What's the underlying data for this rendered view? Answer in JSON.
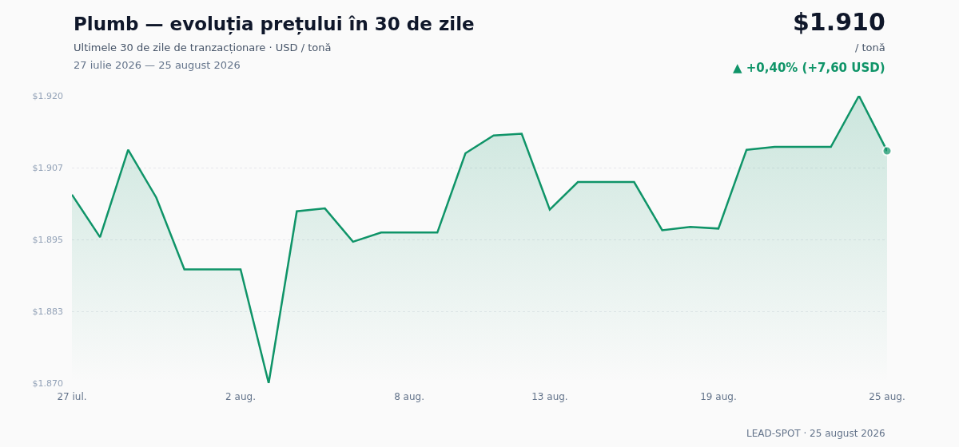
{
  "chart_data": {
    "type": "area",
    "title": "Plumb — evoluția prețului în 30 de zile",
    "subtitle": "Ultimele 30 de zile de tranzacționare · USD / tonă",
    "annotations": [
      "27 iulie 2026 — 25 august 2026",
      "$1.910",
      "/ tonă",
      "▲ +0,40% (+7,60 USD)",
      "LEAD-SPOT · 25 august 2026"
    ],
    "x": [
      "2026-07-27",
      "2026-07-28",
      "2026-07-29",
      "2026-07-30",
      "2026-07-31",
      "2026-08-01",
      "2026-08-02",
      "2026-08-03",
      "2026-08-04",
      "2026-08-05",
      "2026-08-06",
      "2026-08-07",
      "2026-08-08",
      "2026-08-09",
      "2026-08-10",
      "2026-08-11",
      "2026-08-12",
      "2026-08-13",
      "2026-08-14",
      "2026-08-15",
      "2026-08-16",
      "2026-08-17",
      "2026-08-18",
      "2026-08-19",
      "2026-08-20",
      "2026-08-21",
      "2026-08-22",
      "2026-08-23",
      "2026-08-24",
      "2026-08-25"
    ],
    "series": [
      {
        "color": "#0f9468",
        "values": [
          1902.8,
          1895.4,
          1910.6,
          1902.3,
          1889.8,
          1889.8,
          1889.8,
          1870.0,
          1899.9,
          1900.4,
          1894.6,
          1896.2,
          1896.2,
          1896.2,
          1910.0,
          1913.1,
          1913.4,
          1900.2,
          1905.0,
          1905.0,
          1905.0,
          1896.6,
          1897.2,
          1896.9,
          1910.6,
          1911.1,
          1911.1,
          1911.1,
          1920.0,
          1910.4
        ]
      }
    ],
    "xlim": [
      "2026-07-27",
      "2026-08-25"
    ],
    "xticks": [
      {
        "value": "2026-07-27",
        "label": "27 iul."
      },
      {
        "value": "2026-08-02",
        "label": "2 aug."
      },
      {
        "value": "2026-08-08",
        "label": "8 aug."
      },
      {
        "value": "2026-08-13",
        "label": "13 aug."
      },
      {
        "value": "2026-08-19",
        "label": "19 aug."
      },
      {
        "value": "2026-08-25",
        "label": "25 aug."
      }
    ],
    "ylim": [
      1870,
      1920
    ],
    "yticks": [
      {
        "value": 1870,
        "label": "$1.870"
      },
      {
        "value": 1882.5,
        "label": "$1.883"
      },
      {
        "value": 1895,
        "label": "$1.895"
      },
      {
        "value": 1907.5,
        "label": "$1.907"
      },
      {
        "value": 1920,
        "label": "$1.920"
      }
    ],
    "grid": "y",
    "marker": "none",
    "line_style": "solid"
  }
}
